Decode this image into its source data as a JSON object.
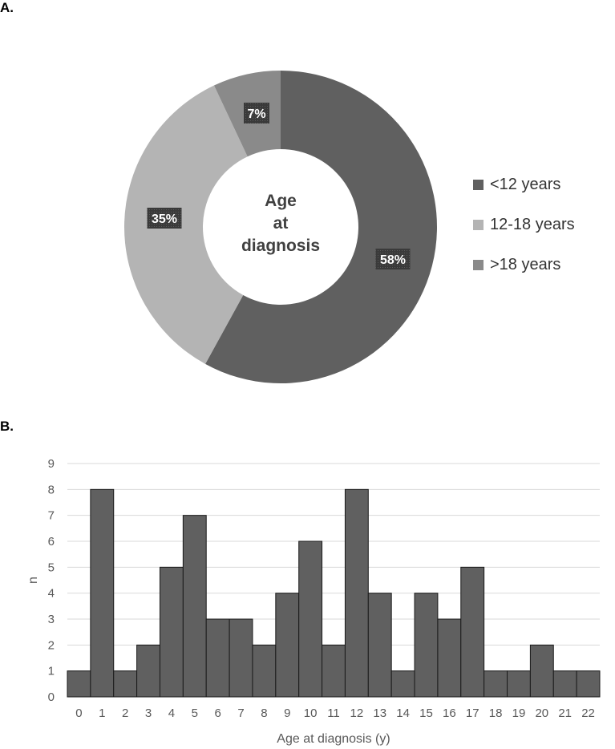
{
  "panels": {
    "a_label": "A.",
    "b_label": "B."
  },
  "colors": {
    "dark": "#606060",
    "light": "#b4b4b4",
    "mid": "#8a8a8a",
    "grid": "#d9d9d9",
    "bar_stroke": "#1a1a1a"
  },
  "chart_data": [
    {
      "type": "pie",
      "style": "donut",
      "center_label": "Age at diagnosis",
      "center_label_lines": [
        "Age",
        "at",
        "diagnosis"
      ],
      "slices": [
        {
          "label": "<12 years",
          "value": 58,
          "value_label": "58%",
          "color": "#606060"
        },
        {
          "label": "12-18 years",
          "value": 35,
          "value_label": "35%",
          "color": "#b4b4b4"
        },
        {
          "label": ">18 years",
          "value": 7,
          "value_label": "7%",
          "color": "#8a8a8a"
        }
      ],
      "legend_position": "right"
    },
    {
      "type": "bar",
      "categories": [
        "0",
        "1",
        "2",
        "3",
        "4",
        "5",
        "6",
        "7",
        "8",
        "9",
        "10",
        "11",
        "12",
        "13",
        "14",
        "15",
        "16",
        "17",
        "18",
        "19",
        "20",
        "21",
        "22"
      ],
      "values": [
        1,
        8,
        1,
        2,
        5,
        7,
        3,
        3,
        2,
        4,
        6,
        2,
        8,
        4,
        1,
        4,
        3,
        5,
        1,
        1,
        2,
        1,
        1
      ],
      "xlabel": "Age at diagnosis (y)",
      "ylabel": "n",
      "ylim": [
        0,
        9
      ],
      "yticks": [
        "0",
        "1",
        "2",
        "3",
        "4",
        "5",
        "6",
        "7",
        "8",
        "9"
      ],
      "grid": true,
      "color": "#606060"
    }
  ]
}
